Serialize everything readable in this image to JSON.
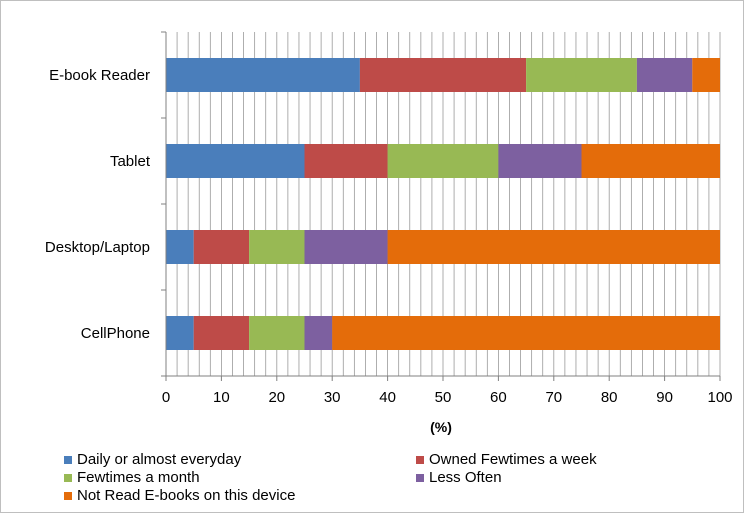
{
  "chart_data": {
    "type": "bar",
    "orientation": "horizontal",
    "stacked": true,
    "categories": [
      "E-book Reader",
      "Tablet",
      "Desktop/Laptop",
      "CellPhone"
    ],
    "series": [
      {
        "name": "Daily or almost everyday",
        "color": "#4a7ebb",
        "values": [
          35,
          25,
          5,
          5
        ]
      },
      {
        "name": "Owned Fewtimes a week",
        "color": "#be4b48",
        "values": [
          30,
          15,
          10,
          10
        ]
      },
      {
        "name": "Fewtimes a month",
        "color": "#98b954",
        "values": [
          20,
          20,
          10,
          10
        ]
      },
      {
        "name": "Less Often",
        "color": "#7d60a0",
        "values": [
          10,
          15,
          15,
          5
        ]
      },
      {
        "name": "Not Read E-books on this device",
        "color": "#e46c0a",
        "values": [
          5,
          25,
          60,
          70
        ]
      }
    ],
    "xlabel": "(%)",
    "xlim": [
      0,
      100
    ],
    "xticks": [
      "0",
      "10",
      "20",
      "30",
      "40",
      "50",
      "60",
      "70",
      "80",
      "90",
      "100"
    ],
    "grid": true,
    "legend_position": "bottom"
  }
}
